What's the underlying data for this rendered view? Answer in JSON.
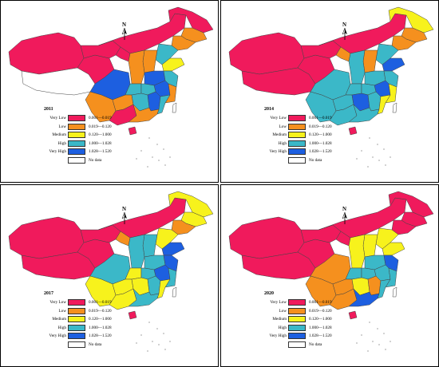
{
  "colors": {
    "very_low": "#f01a5c",
    "low": "#f5901e",
    "medium": "#f7f21c",
    "high": "#3bb8c8",
    "very_high": "#1d5fe0",
    "no_data": "#ffffff"
  },
  "legend": {
    "classes": [
      {
        "label": "Very Low",
        "range": "0.001—0.019",
        "color_key": "very_low"
      },
      {
        "label": "Low",
        "range": "0.019—0.120",
        "color_key": "low"
      },
      {
        "label": "Medium",
        "range": "0.120—1.000",
        "color_key": "medium"
      },
      {
        "label": "High",
        "range": "1.000—1.028",
        "color_key": "high"
      },
      {
        "label": "Very High",
        "range": "1.028—1.520",
        "color_key": "very_high"
      }
    ],
    "no_data_label": "No data"
  },
  "north_label": "N",
  "panels": [
    {
      "year": "2011",
      "regions": {
        "xinjiang": "very_low",
        "tibet": "none",
        "qinghai": "very_low",
        "gansu": "very_low",
        "inner_mongolia": "very_low",
        "heilongjiang": "very_low",
        "jilin": "low",
        "liaoning": "low",
        "beijing_hebei": "high",
        "shanxi": "low",
        "shaanxi": "low",
        "ningxia": "very_low",
        "henan": "very_high",
        "shandong": "medium",
        "sichuan": "very_high",
        "chongqing": "high",
        "hubei": "high",
        "anhui": "very_high",
        "jiangsu": "high",
        "zhejiang": "low",
        "yunnan": "low",
        "guizhou": "low",
        "hunan": "high",
        "jiangxi": "very_high",
        "fujian": "high",
        "guangxi": "very_low",
        "guangdong": "low",
        "hainan": "very_low"
      }
    },
    {
      "year": "2014",
      "regions": {
        "xinjiang": "very_low",
        "tibet": "very_low",
        "qinghai": "very_low",
        "gansu": "very_low",
        "inner_mongolia": "very_low",
        "heilongjiang": "medium",
        "jilin": "low",
        "liaoning": "low",
        "beijing_hebei": "high",
        "shanxi": "low",
        "shaanxi": "high",
        "ningxia": "low",
        "henan": "high",
        "shandong": "very_high",
        "sichuan": "high",
        "chongqing": "high",
        "hubei": "high",
        "anhui": "very_high",
        "jiangsu": "high",
        "zhejiang": "medium",
        "yunnan": "high",
        "guizhou": "high",
        "hunan": "very_high",
        "jiangxi": "high",
        "fujian": "medium",
        "guangxi": "high",
        "guangdong": "high",
        "hainan": "very_low"
      }
    },
    {
      "year": "2017",
      "regions": {
        "xinjiang": "very_low",
        "tibet": "very_low",
        "qinghai": "very_low",
        "gansu": "very_low",
        "inner_mongolia": "very_low",
        "heilongjiang": "medium",
        "jilin": "medium",
        "liaoning": "low",
        "beijing_hebei": "medium",
        "shanxi": "high",
        "shaanxi": "high",
        "ningxia": "low",
        "henan": "high",
        "shandong": "very_high",
        "sichuan": "high",
        "chongqing": "medium",
        "hubei": "high",
        "anhui": "very_high",
        "jiangsu": "very_high",
        "zhejiang": "high",
        "yunnan": "medium",
        "guizhou": "medium",
        "hunan": "medium",
        "jiangxi": "high",
        "fujian": "medium",
        "guangxi": "medium",
        "guangdong": "high",
        "hainan": "very_low"
      }
    },
    {
      "year": "2020",
      "regions": {
        "xinjiang": "very_low",
        "tibet": "very_low",
        "qinghai": "very_low",
        "gansu": "very_low",
        "inner_mongolia": "very_low",
        "heilongjiang": "very_low",
        "jilin": "very_low",
        "liaoning": "very_low",
        "beijing_hebei": "medium",
        "shanxi": "medium",
        "shaanxi": "medium",
        "ningxia": "very_low",
        "henan": "high",
        "shandong": "medium",
        "sichuan": "low",
        "chongqing": "high",
        "hubei": "high",
        "anhui": "high",
        "jiangsu": "very_high",
        "zhejiang": "high",
        "yunnan": "low",
        "guizhou": "low",
        "hunan": "medium",
        "jiangxi": "low",
        "fujian": "high",
        "guangxi": "low",
        "guangdong": "very_high",
        "hainan": "very_low"
      }
    }
  ]
}
